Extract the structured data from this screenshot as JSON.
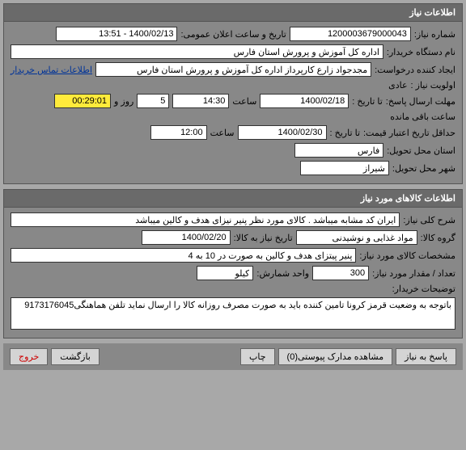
{
  "panel1": {
    "title": "اطلاعات نیاز",
    "need_number_label": "شماره نیاز:",
    "need_number": "1200003679000043",
    "announce_label": "تاریخ و ساعت اعلان عمومی:",
    "announce_value": "1400/02/13 - 13:51",
    "buyer_org_label": "نام دستگاه خریدار:",
    "buyer_org": "اداره کل آموزش و پرورش استان فارس",
    "creator_label": "ایجاد کننده درخواست:",
    "creator": "مجدجواد زارع کارپرداز اداره کل آموزش و پرورش استان فارس",
    "contact_link": "اطلاعات تماس خریدار",
    "priority_label": "اولویت نیاز :",
    "priority": "عادی",
    "deadline_label": "مهلت ارسال پاسخ:",
    "to_date_label": "تا تاریخ :",
    "deadline_date": "1400/02/18",
    "time_label": "ساعت",
    "deadline_time": "14:30",
    "days_count": "5",
    "days_label": "روز و",
    "remaining_time": "00:29:01",
    "remaining_label": "ساعت باقی مانده",
    "min_valid_label": "حداقل تاریخ اعتبار قیمت:",
    "min_valid_date": "1400/02/30",
    "min_valid_time": "12:00",
    "delivery_province_label": "استان محل تحویل:",
    "delivery_province": "فارس",
    "delivery_city_label": "شهر محل تحویل:",
    "delivery_city": "شیراز"
  },
  "panel2": {
    "title": "اطلاعات کالاهای مورد نیاز",
    "desc_label": "شرح کلی نیاز:",
    "desc": "ایران کد مشابه میباشد . کالای مورد نظر پنیر نیزای هدف و کالین میباشد",
    "group_label": "گروه کالا:",
    "group": "مواد غذایی و نوشیدنی",
    "need_date_label": "تاریخ نیاز به کالا:",
    "need_date": "1400/02/20",
    "spec_label": "مشخصات کالای مورد نیاز:",
    "spec": "پنیر پیتزای هدف و کالین به صورت در 10 به 4",
    "qty_label": "تعداد / مقدار مورد نیاز:",
    "qty": "300",
    "unit_label": "واحد شمارش:",
    "unit": "کیلو",
    "notes_label": "توضیحات خریدار:",
    "notes": "باتوجه به وضعیت قرمز کرونا تامین کننده باید به صورت مصرف روزانه کالا را ارسال نماید تلفن هماهنگی9173176045"
  },
  "buttons": {
    "respond": "پاسخ به نیاز",
    "attachments": "مشاهده مدارک پیوستی(0)",
    "print": "چاپ",
    "back": "بازگشت",
    "exit": "خروج"
  }
}
